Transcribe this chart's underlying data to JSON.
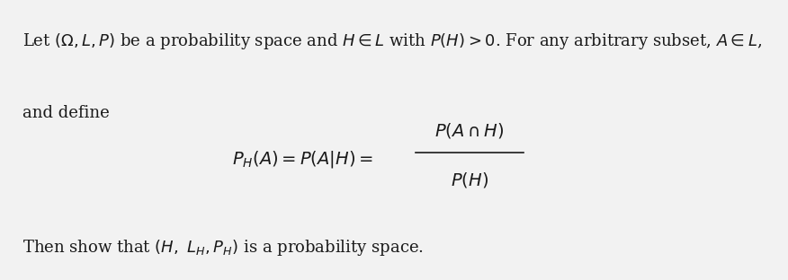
{
  "background_color": "#f2f2f2",
  "text_color": "#1a1a1a",
  "fig_width": 8.76,
  "fig_height": 3.12,
  "dpi": 100
}
